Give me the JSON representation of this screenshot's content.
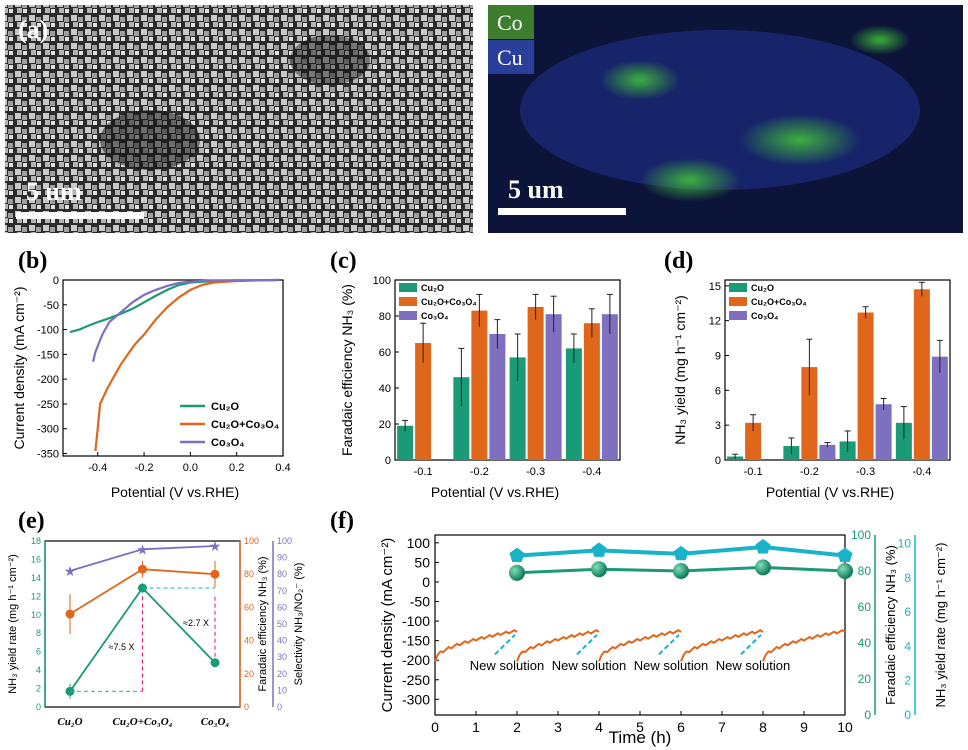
{
  "panels": {
    "a": {
      "label": "(a)",
      "sem_scale": "5 um",
      "map_scale": "5 um",
      "map_legend": [
        {
          "name": "Co",
          "color": "#3f7d2e"
        },
        {
          "name": "Cu",
          "color": "#2a3f9a"
        }
      ]
    },
    "b": {
      "label": "(b)"
    },
    "c": {
      "label": "(c)"
    },
    "d": {
      "label": "(d)"
    },
    "e": {
      "label": "(e)"
    },
    "f": {
      "label": "(f)"
    }
  },
  "colors": {
    "cu2o": "#1a9a76",
    "cu2o_co3o4": "#e0661b",
    "co3o4": "#7f6fc0",
    "yield_f": "#18b3c9"
  },
  "chart_data": [
    {
      "panel": "b",
      "type": "line",
      "xlabel": "Potential (V vs.RHE)",
      "ylabel": "Current density (mA cm⁻²)",
      "xlim": [
        -0.55,
        0.4
      ],
      "ylim": [
        -355,
        0
      ],
      "xticks": [
        "-0.4",
        "-0.2",
        "0.0",
        "0.2",
        "0.4"
      ],
      "yticks": [
        "0",
        "-50",
        "-100",
        "-150",
        "-200",
        "-250",
        "-300",
        "-350"
      ],
      "legend_position": "bottom-right",
      "series": [
        {
          "name": "Cu₂O",
          "color": "#1a9a76",
          "points": [
            [
              -0.52,
              -105
            ],
            [
              -0.48,
              -100
            ],
            [
              -0.44,
              -92
            ],
            [
              -0.4,
              -85
            ],
            [
              -0.35,
              -77
            ],
            [
              -0.3,
              -68
            ],
            [
              -0.25,
              -58
            ],
            [
              -0.2,
              -45
            ],
            [
              -0.15,
              -32
            ],
            [
              -0.1,
              -20
            ],
            [
              -0.05,
              -10
            ],
            [
              0.0,
              -5
            ],
            [
              0.1,
              -2
            ],
            [
              0.2,
              -1
            ],
            [
              0.38,
              0
            ]
          ]
        },
        {
          "name": "Cu₂O+Co₃O₄",
          "color": "#e0661b",
          "points": [
            [
              -0.41,
              -345
            ],
            [
              -0.4,
              -300
            ],
            [
              -0.39,
              -250
            ],
            [
              -0.36,
              -220
            ],
            [
              -0.33,
              -195
            ],
            [
              -0.3,
              -170
            ],
            [
              -0.27,
              -150
            ],
            [
              -0.24,
              -130
            ],
            [
              -0.2,
              -110
            ],
            [
              -0.15,
              -80
            ],
            [
              -0.1,
              -55
            ],
            [
              -0.05,
              -35
            ],
            [
              0.0,
              -20
            ],
            [
              0.05,
              -10
            ],
            [
              0.1,
              -5
            ],
            [
              0.2,
              -2
            ],
            [
              0.38,
              0
            ]
          ]
        },
        {
          "name": "Co₃O₄",
          "color": "#7f6fc0",
          "points": [
            [
              -0.42,
              -165
            ],
            [
              -0.41,
              -145
            ],
            [
              -0.38,
              -110
            ],
            [
              -0.35,
              -85
            ],
            [
              -0.3,
              -65
            ],
            [
              -0.25,
              -45
            ],
            [
              -0.2,
              -30
            ],
            [
              -0.15,
              -20
            ],
            [
              -0.1,
              -12
            ],
            [
              -0.05,
              -6
            ],
            [
              0.0,
              -3
            ],
            [
              0.1,
              -1
            ],
            [
              0.38,
              0
            ]
          ]
        }
      ]
    },
    {
      "panel": "c",
      "type": "bar",
      "categories": [
        "-0.1",
        "-0.2",
        "-0.3",
        "-0.4"
      ],
      "xlabel": "Potential (V vs.RHE)",
      "ylabel": "Faradaic efficiency NH₃ (%)",
      "ylim": [
        0,
        100
      ],
      "yticks": [
        "0",
        "20",
        "40",
        "60",
        "80",
        "100"
      ],
      "legend_position": "top-left",
      "series": [
        {
          "name": "Cu₂O",
          "color": "#1a9a76",
          "values": [
            19,
            46,
            57,
            62
          ],
          "errors": [
            3,
            16,
            13,
            8
          ]
        },
        {
          "name": "Cu₂O+Co₃O₄",
          "color": "#e0661b",
          "values": [
            65,
            83,
            85,
            76
          ],
          "errors": [
            11,
            9,
            7,
            8
          ]
        },
        {
          "name": "Co₃O₄",
          "color": "#7f6fc0",
          "values": [
            null,
            70,
            81,
            81
          ],
          "errors": [
            0,
            8,
            10,
            11
          ]
        }
      ]
    },
    {
      "panel": "d",
      "type": "bar",
      "categories": [
        "-0.1",
        "-0.2",
        "-0.3",
        "-0.4"
      ],
      "xlabel": "Potential (V vs.RHE)",
      "ylabel": "NH₃ yield (mg h⁻¹ cm⁻²)",
      "ylim": [
        0,
        15.5
      ],
      "yticks": [
        "0",
        "3",
        "6",
        "9",
        "12",
        "15"
      ],
      "legend_position": "top-left",
      "series": [
        {
          "name": "Cu₂O",
          "color": "#1a9a76",
          "values": [
            0.3,
            1.2,
            1.6,
            3.2
          ],
          "errors": [
            0.2,
            0.7,
            0.9,
            1.4
          ]
        },
        {
          "name": "Cu₂O+Co₃O₄",
          "color": "#e0661b",
          "values": [
            3.2,
            8.0,
            12.7,
            14.7
          ],
          "errors": [
            0.7,
            2.4,
            0.5,
            0.6
          ]
        },
        {
          "name": "Co₃O₄",
          "color": "#7f6fc0",
          "values": [
            null,
            1.3,
            4.8,
            8.9
          ],
          "errors": [
            0,
            0.2,
            0.5,
            1.4
          ]
        }
      ]
    },
    {
      "panel": "e",
      "type": "line",
      "categories": [
        "Cu₂O",
        "Cu₂O+Co₃O₄",
        "Co₃O₄"
      ],
      "y_left_label": "NH₃ yield rate (mg h⁻¹ cm⁻²)",
      "y_mid_label": "Faradaic efficiency NH₃ (%)",
      "y_right_label": "Selectivity NH₃/NO₂⁻ (%)",
      "y_left_lim": [
        0,
        18
      ],
      "y_mid_lim": [
        0,
        100
      ],
      "y_right_lim": [
        0,
        100
      ],
      "y_left_ticks": [
        "0",
        "2",
        "4",
        "6",
        "8",
        "10",
        "12",
        "14",
        "16",
        "18"
      ],
      "y_mid_ticks": [
        "0",
        "20",
        "40",
        "60",
        "80",
        "100"
      ],
      "y_right_ticks": [
        "0",
        "10",
        "20",
        "30",
        "40",
        "50",
        "60",
        "70",
        "80",
        "90",
        "100"
      ],
      "annotations": [
        "≈7.5 X",
        "≈2.7 X"
      ],
      "series": [
        {
          "name": "NH₃ yield rate",
          "axis": "left",
          "color": "#1a9a76",
          "values": [
            1.7,
            12.9,
            4.8
          ],
          "errors": [
            0.8,
            0.5,
            0.5
          ]
        },
        {
          "name": "Faradaic efficiency",
          "axis": "mid",
          "color": "#e0661b",
          "values": [
            56,
            83,
            80
          ],
          "errors": [
            12,
            5,
            8
          ]
        },
        {
          "name": "Selectivity",
          "axis": "right",
          "color": "#7f6fc0",
          "values": [
            82,
            95,
            97
          ],
          "errors": [
            2,
            1,
            1
          ]
        }
      ]
    },
    {
      "panel": "f",
      "type": "line",
      "xlabel": "Time (h)",
      "ylabel": "Current density (mA cm⁻²)",
      "y2label": "Faradaic efficiency NH₃ (%)",
      "y3label": "NH₃ yield rate (mg h⁻¹ cm⁻²)",
      "xlim": [
        0,
        10
      ],
      "ylim": [
        -340,
        120
      ],
      "xticks": [
        "0",
        "1",
        "2",
        "3",
        "4",
        "5",
        "6",
        "7",
        "8",
        "9",
        "10"
      ],
      "yticks": [
        "100",
        "50",
        "0",
        "-50",
        "-100",
        "-150",
        "-200",
        "-250",
        "-300"
      ],
      "y2ticks": [
        "0",
        "20",
        "40",
        "60",
        "80",
        "100"
      ],
      "y3ticks": [
        "0",
        "2",
        "4",
        "6",
        "8",
        "10"
      ],
      "annotation_text": "New solution",
      "annotation_x": [
        2,
        4,
        6,
        8
      ],
      "segments": [
        [
          0,
          2
        ],
        [
          2,
          4
        ],
        [
          4,
          6
        ],
        [
          6,
          8
        ],
        [
          8,
          10
        ]
      ],
      "current_start": -200,
      "current_end": -125,
      "fe_points": {
        "x": [
          2,
          4,
          6,
          8,
          10
        ],
        "y": [
          79,
          81,
          80,
          82,
          80
        ]
      },
      "yield_points": {
        "x": [
          2,
          4,
          6,
          8,
          10
        ],
        "y": [
          9.3,
          9.6,
          9.4,
          9.8,
          9.3
        ]
      }
    }
  ]
}
